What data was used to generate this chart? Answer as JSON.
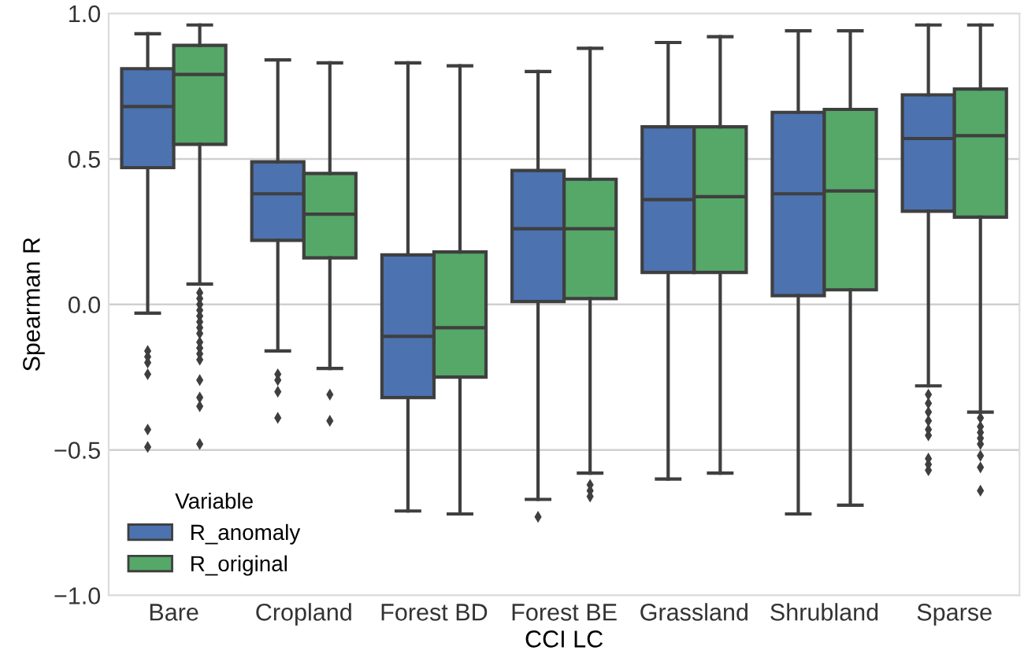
{
  "chart_data": {
    "type": "box",
    "xlabel": "CCI LC",
    "ylabel": "Spearman R",
    "legend_title": "Variable",
    "legend": "bottom left",
    "grid": "y",
    "categories": [
      "Bare",
      "Cropland",
      "Forest BD",
      "Forest BE",
      "Grassland",
      "Shrubland",
      "Sparse"
    ],
    "ylim": [
      -1.0,
      1.0
    ],
    "yticks": [
      {
        "value": -1.0,
        "label": "−1.0"
      },
      {
        "value": -0.5,
        "label": "−0.5"
      },
      {
        "value": 0.0,
        "label": "0.0"
      },
      {
        "value": 0.5,
        "label": "0.5"
      },
      {
        "value": 1.0,
        "label": "1.0"
      }
    ],
    "series": [
      {
        "name": "R_anomaly",
        "color": "#4c72b0",
        "boxes": [
          {
            "low": -0.03,
            "q1": 0.47,
            "median": 0.68,
            "q3": 0.81,
            "high": 0.93,
            "outliers": [
              -0.16,
              -0.18,
              -0.2,
              -0.24,
              -0.43,
              -0.49
            ]
          },
          {
            "low": -0.16,
            "q1": 0.22,
            "median": 0.38,
            "q3": 0.49,
            "high": 0.84,
            "outliers": [
              -0.24,
              -0.26,
              -0.3,
              -0.39
            ]
          },
          {
            "low": -0.71,
            "q1": -0.32,
            "median": -0.11,
            "q3": 0.17,
            "high": 0.83
          },
          {
            "low": -0.67,
            "q1": 0.01,
            "median": 0.26,
            "q3": 0.46,
            "high": 0.8,
            "outliers": [
              -0.73
            ]
          },
          {
            "low": -0.6,
            "q1": 0.11,
            "median": 0.36,
            "q3": 0.61,
            "high": 0.9
          },
          {
            "low": -0.72,
            "q1": 0.03,
            "median": 0.38,
            "q3": 0.66,
            "high": 0.94
          },
          {
            "low": -0.28,
            "q1": 0.32,
            "median": 0.57,
            "q3": 0.72,
            "high": 0.96,
            "outliers": [
              -0.31,
              -0.34,
              -0.37,
              -0.4,
              -0.43,
              -0.45,
              -0.53,
              -0.55,
              -0.57
            ]
          }
        ]
      },
      {
        "name": "R_original",
        "color": "#55a868",
        "boxes": [
          {
            "low": 0.07,
            "q1": 0.55,
            "median": 0.79,
            "q3": 0.89,
            "high": 0.96,
            "outliers": [
              0.04,
              0.02,
              0.0,
              -0.02,
              -0.04,
              -0.06,
              -0.08,
              -0.1,
              -0.13,
              -0.15,
              -0.17,
              -0.19,
              -0.26,
              -0.32,
              -0.35,
              -0.48
            ]
          },
          {
            "low": -0.22,
            "q1": 0.16,
            "median": 0.31,
            "q3": 0.45,
            "high": 0.83,
            "outliers": [
              -0.31,
              -0.4
            ]
          },
          {
            "low": -0.72,
            "q1": -0.25,
            "median": -0.08,
            "q3": 0.18,
            "high": 0.82
          },
          {
            "low": -0.58,
            "q1": 0.02,
            "median": 0.26,
            "q3": 0.43,
            "high": 0.88,
            "outliers": [
              -0.62,
              -0.64,
              -0.66
            ]
          },
          {
            "low": -0.58,
            "q1": 0.11,
            "median": 0.37,
            "q3": 0.61,
            "high": 0.92
          },
          {
            "low": -0.69,
            "q1": 0.05,
            "median": 0.39,
            "q3": 0.67,
            "high": 0.94
          },
          {
            "low": -0.37,
            "q1": 0.3,
            "median": 0.58,
            "q3": 0.74,
            "high": 0.96,
            "outliers": [
              -0.39,
              -0.42,
              -0.44,
              -0.46,
              -0.48,
              -0.52,
              -0.56,
              -0.64
            ]
          }
        ]
      }
    ]
  }
}
